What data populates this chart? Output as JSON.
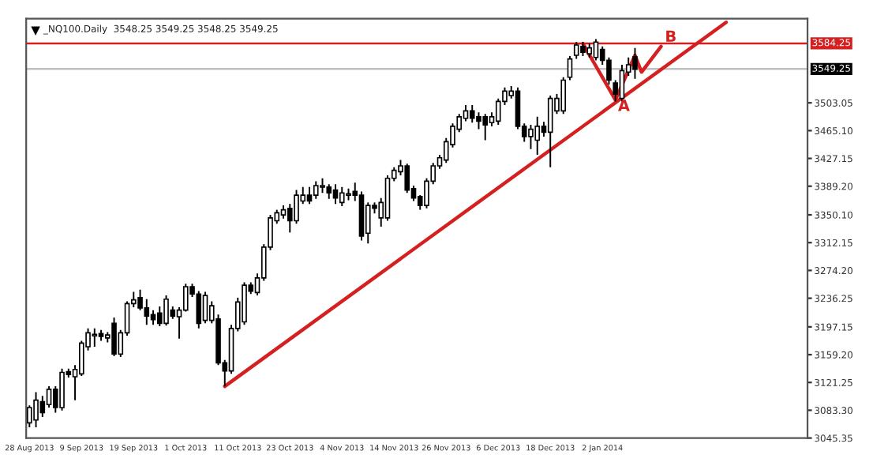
{
  "chart_data": {
    "type": "candlestick",
    "title": "_NQ100.Daily  3548.25 3549.25 3548.25 3549.25",
    "categories": [
      "28 Aug 2013",
      null,
      null,
      null,
      null,
      null,
      null,
      null,
      "9 Sep 2013",
      null,
      null,
      null,
      null,
      null,
      null,
      null,
      "19 Sep 2013",
      null,
      null,
      null,
      null,
      null,
      null,
      null,
      "1 Oct 2013",
      null,
      null,
      null,
      null,
      null,
      null,
      null,
      "11 Oct 2013",
      null,
      null,
      null,
      null,
      null,
      null,
      null,
      "23 Oct 2013",
      null,
      null,
      null,
      null,
      null,
      null,
      null,
      "4 Nov 2013",
      null,
      null,
      null,
      null,
      null,
      null,
      null,
      "14 Nov 2013",
      null,
      null,
      null,
      null,
      null,
      null,
      null,
      "26 Nov 2013",
      null,
      null,
      null,
      null,
      null,
      null,
      null,
      "6 Dec 2013",
      null,
      null,
      null,
      null,
      null,
      null,
      null,
      "18 Dec 2013",
      null,
      null,
      null,
      null,
      null,
      null,
      null,
      "2 Jan 2014",
      null,
      null,
      null,
      null,
      null,
      null,
      null,
      null,
      null,
      null,
      null,
      null,
      null,
      null,
      null,
      null,
      null,
      null,
      null,
      null,
      null,
      null,
      null,
      null,
      null,
      null,
      null,
      null,
      null,
      null,
      null
    ],
    "ohlc": [
      [
        3066,
        3090,
        3060,
        3087
      ],
      [
        3070,
        3108,
        3060,
        3097
      ],
      [
        3095,
        3103,
        3074,
        3080
      ],
      [
        3091,
        3116,
        3087,
        3112
      ],
      [
        3112,
        3116,
        3080,
        3087
      ],
      [
        3087,
        3140,
        3083,
        3135
      ],
      [
        3136,
        3140,
        3128,
        3132
      ],
      [
        3129,
        3145,
        3097,
        3139
      ],
      [
        3133,
        3178,
        3130,
        3175
      ],
      [
        3170,
        3195,
        3165,
        3189
      ],
      [
        3185,
        3195,
        3170,
        3187
      ],
      [
        3188,
        3193,
        3178,
        3184
      ],
      [
        3182,
        3190,
        3176,
        3186
      ],
      [
        3202,
        3210,
        3157,
        3160
      ],
      [
        3160,
        3193,
        3156,
        3189
      ],
      [
        3189,
        3232,
        3185,
        3229
      ],
      [
        3229,
        3245,
        3224,
        3234
      ],
      [
        3237,
        3248,
        3220,
        3223
      ],
      [
        3223,
        3235,
        3200,
        3212
      ],
      [
        3214,
        3220,
        3200,
        3207
      ],
      [
        3216,
        3225,
        3198,
        3202
      ],
      [
        3202,
        3240,
        3199,
        3235
      ],
      [
        3220,
        3225,
        3208,
        3212
      ],
      [
        3211,
        3224,
        3181,
        3220
      ],
      [
        3220,
        3256,
        3218,
        3252
      ],
      [
        3252,
        3256,
        3238,
        3242
      ],
      [
        3242,
        3246,
        3195,
        3202
      ],
      [
        3206,
        3245,
        3202,
        3240
      ],
      [
        3206,
        3232,
        3202,
        3226
      ],
      [
        3208,
        3214,
        3145,
        3148
      ],
      [
        3148,
        3152,
        3116,
        3137
      ],
      [
        3137,
        3200,
        3133,
        3195
      ],
      [
        3195,
        3237,
        3191,
        3231
      ],
      [
        3204,
        3258,
        3200,
        3254
      ],
      [
        3254,
        3258,
        3242,
        3246
      ],
      [
        3244,
        3270,
        3240,
        3264
      ],
      [
        3264,
        3310,
        3260,
        3306
      ],
      [
        3306,
        3350,
        3302,
        3346
      ],
      [
        3342,
        3357,
        3338,
        3353
      ],
      [
        3350,
        3363,
        3345,
        3357
      ],
      [
        3359,
        3365,
        3326,
        3342
      ],
      [
        3342,
        3384,
        3338,
        3377
      ],
      [
        3369,
        3388,
        3365,
        3377
      ],
      [
        3377,
        3388,
        3365,
        3369
      ],
      [
        3377,
        3396,
        3372,
        3390
      ],
      [
        3388,
        3400,
        3380,
        3390
      ],
      [
        3388,
        3392,
        3372,
        3380
      ],
      [
        3384,
        3392,
        3365,
        3373
      ],
      [
        3367,
        3388,
        3362,
        3380
      ],
      [
        3377,
        3386,
        3370,
        3379
      ],
      [
        3382,
        3394,
        3369,
        3377
      ],
      [
        3377,
        3382,
        3315,
        3321
      ],
      [
        3325,
        3367,
        3311,
        3363
      ],
      [
        3363,
        3367,
        3352,
        3359
      ],
      [
        3346,
        3373,
        3334,
        3367
      ],
      [
        3346,
        3404,
        3342,
        3400
      ],
      [
        3400,
        3415,
        3396,
        3411
      ],
      [
        3409,
        3425,
        3404,
        3417
      ],
      [
        3417,
        3420,
        3380,
        3384
      ],
      [
        3386,
        3390,
        3369,
        3373
      ],
      [
        3375,
        3377,
        3357,
        3363
      ],
      [
        3363,
        3400,
        3359,
        3396
      ],
      [
        3396,
        3421,
        3392,
        3417
      ],
      [
        3417,
        3432,
        3413,
        3428
      ],
      [
        3425,
        3455,
        3421,
        3450
      ],
      [
        3446,
        3475,
        3442,
        3471
      ],
      [
        3467,
        3488,
        3463,
        3484
      ],
      [
        3482,
        3500,
        3478,
        3492
      ],
      [
        3492,
        3500,
        3476,
        3482
      ],
      [
        3484,
        3490,
        3467,
        3478
      ],
      [
        3484,
        3488,
        3452,
        3473
      ],
      [
        3476,
        3490,
        3471,
        3484
      ],
      [
        3478,
        3509,
        3473,
        3505
      ],
      [
        3505,
        3524,
        3500,
        3519
      ],
      [
        3513,
        3526,
        3509,
        3519
      ],
      [
        3519,
        3524,
        3467,
        3471
      ],
      [
        3471,
        3475,
        3450,
        3457
      ],
      [
        3457,
        3473,
        3440,
        3467
      ],
      [
        3452,
        3484,
        3432,
        3471
      ],
      [
        3471,
        3477,
        3457,
        3463
      ],
      [
        3463,
        3513,
        3415,
        3509
      ],
      [
        3492,
        3515,
        3488,
        3509
      ],
      [
        3492,
        3538,
        3488,
        3534
      ],
      [
        3538,
        3567,
        3534,
        3563
      ],
      [
        3568,
        3586,
        3563,
        3582
      ],
      [
        3580,
        3586,
        3567,
        3572
      ],
      [
        3570,
        3584,
        3565,
        3578
      ],
      [
        3565,
        3590,
        3561,
        3586
      ],
      [
        3576,
        3580,
        3555,
        3561
      ],
      [
        3561,
        3565,
        3528,
        3534
      ],
      [
        3530,
        3534,
        3505,
        3515
      ],
      [
        3509,
        3555,
        3505,
        3547
      ],
      [
        3545,
        3565,
        3540,
        3555
      ],
      [
        3566,
        3578,
        3536,
        3549
      ],
      null,
      null,
      null,
      null,
      null,
      null,
      null,
      null,
      null,
      null,
      null,
      null,
      null,
      null,
      null,
      null,
      null,
      null,
      null,
      null,
      null,
      null,
      null,
      null,
      null,
      null
    ],
    "series": [
      {
        "type": "line",
        "color": "#d42020",
        "values": [
          null,
          null,
          null,
          null,
          null,
          null,
          null,
          null,
          null,
          null,
          null,
          null,
          null,
          null,
          null,
          null,
          null,
          null,
          null,
          null,
          null,
          null,
          null,
          null,
          null,
          null,
          null,
          null,
          null,
          null,
          3116,
          null,
          null,
          null,
          null,
          null,
          null,
          null,
          null,
          null,
          null,
          null,
          null,
          null,
          null,
          null,
          null,
          null,
          null,
          null,
          null,
          null,
          null,
          null,
          null,
          null,
          null,
          null,
          null,
          null,
          null,
          null,
          null,
          null,
          null,
          null,
          null,
          null,
          null,
          null,
          null,
          null,
          null,
          null,
          null,
          null,
          null,
          null,
          null,
          null,
          null,
          null,
          null,
          null,
          null,
          null,
          null,
          null,
          null,
          null,
          null,
          null,
          null,
          null,
          null,
          null,
          null,
          null,
          null,
          null,
          null,
          null,
          null,
          null,
          null,
          null,
          null,
          3613,
          null,
          null,
          null,
          null,
          null,
          null,
          null,
          null,
          null,
          null,
          null,
          null
        ]
      },
      {
        "type": "line",
        "color": "#d42020",
        "values": [
          null,
          null,
          null,
          null,
          null,
          null,
          null,
          null,
          null,
          null,
          null,
          null,
          null,
          null,
          null,
          null,
          null,
          null,
          null,
          null,
          null,
          null,
          null,
          null,
          null,
          null,
          null,
          null,
          null,
          null,
          null,
          null,
          null,
          null,
          null,
          null,
          null,
          null,
          null,
          null,
          null,
          null,
          null,
          null,
          null,
          null,
          null,
          null,
          null,
          null,
          null,
          null,
          null,
          null,
          null,
          null,
          null,
          null,
          null,
          null,
          null,
          null,
          null,
          null,
          null,
          null,
          null,
          null,
          null,
          null,
          null,
          null,
          null,
          null,
          null,
          null,
          null,
          null,
          null,
          null,
          null,
          null,
          null,
          null,
          null,
          3584,
          null,
          null,
          null,
          null,
          3507,
          null,
          null,
          3568,
          3545,
          null,
          null,
          3580,
          null,
          null,
          null,
          null,
          null,
          null,
          null,
          null,
          null,
          null,
          null,
          null,
          null,
          null,
          null,
          null,
          null,
          null,
          null,
          null,
          null,
          null
        ]
      }
    ],
    "ylim": [
      3045.35,
      3618
    ],
    "yticks": [
      {
        "value": 3045.35,
        "label": "3045.35"
      },
      {
        "value": 3083.3,
        "label": "3083.30"
      },
      {
        "value": 3121.25,
        "label": "3121.25"
      },
      {
        "value": 3159.2,
        "label": "3159.20"
      },
      {
        "value": 3197.15,
        "label": "3197.15"
      },
      {
        "value": 3236.25,
        "label": "3236.25"
      },
      {
        "value": 3274.2,
        "label": "3274.20"
      },
      {
        "value": 3312.15,
        "label": "3312.15"
      },
      {
        "value": 3350.1,
        "label": "3350.10"
      },
      {
        "value": 3389.2,
        "label": "3389.20"
      },
      {
        "value": 3427.15,
        "label": "3427.15"
      },
      {
        "value": 3465.1,
        "label": "3465.10"
      },
      {
        "value": 3503.05,
        "label": "3503.05"
      }
    ],
    "ref_lines": [
      {
        "axis": "y",
        "value": 3584.25,
        "label": "3584.25",
        "color": "#d42020"
      },
      {
        "axis": "y",
        "value": 3549.25,
        "label": "3549.25",
        "color": "#c0c0c0"
      }
    ],
    "annotations": [
      "A",
      "B"
    ],
    "grid": false,
    "legend": false
  }
}
